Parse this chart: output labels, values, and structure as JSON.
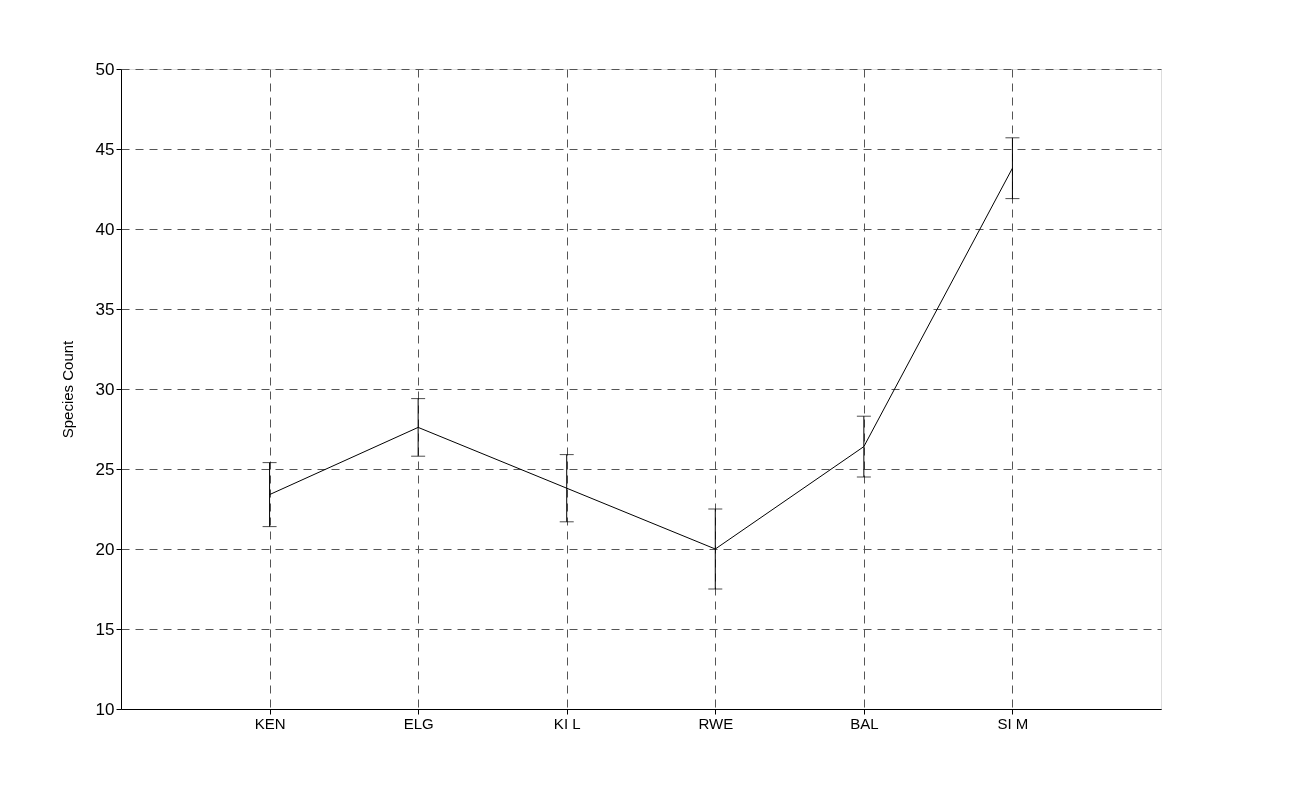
{
  "chart_data": {
    "type": "line",
    "ylabel": "Species Count",
    "categories": [
      "KEN",
      "ELG",
      "KI L",
      "RWE",
      "BAL",
      "SI M"
    ],
    "series": [
      {
        "color": "#000000",
        "values": [
          23.4,
          27.6,
          23.8,
          20.0,
          26.4,
          43.8
        ],
        "errors": [
          2.0,
          1.8,
          2.1,
          2.5,
          1.9,
          1.9
        ]
      }
    ],
    "ylim": [
      10,
      50
    ],
    "yticks": [
      10,
      15,
      20,
      25,
      30,
      35,
      40,
      45,
      50
    ],
    "grid": true,
    "line_style": "solid",
    "marker": "none"
  }
}
